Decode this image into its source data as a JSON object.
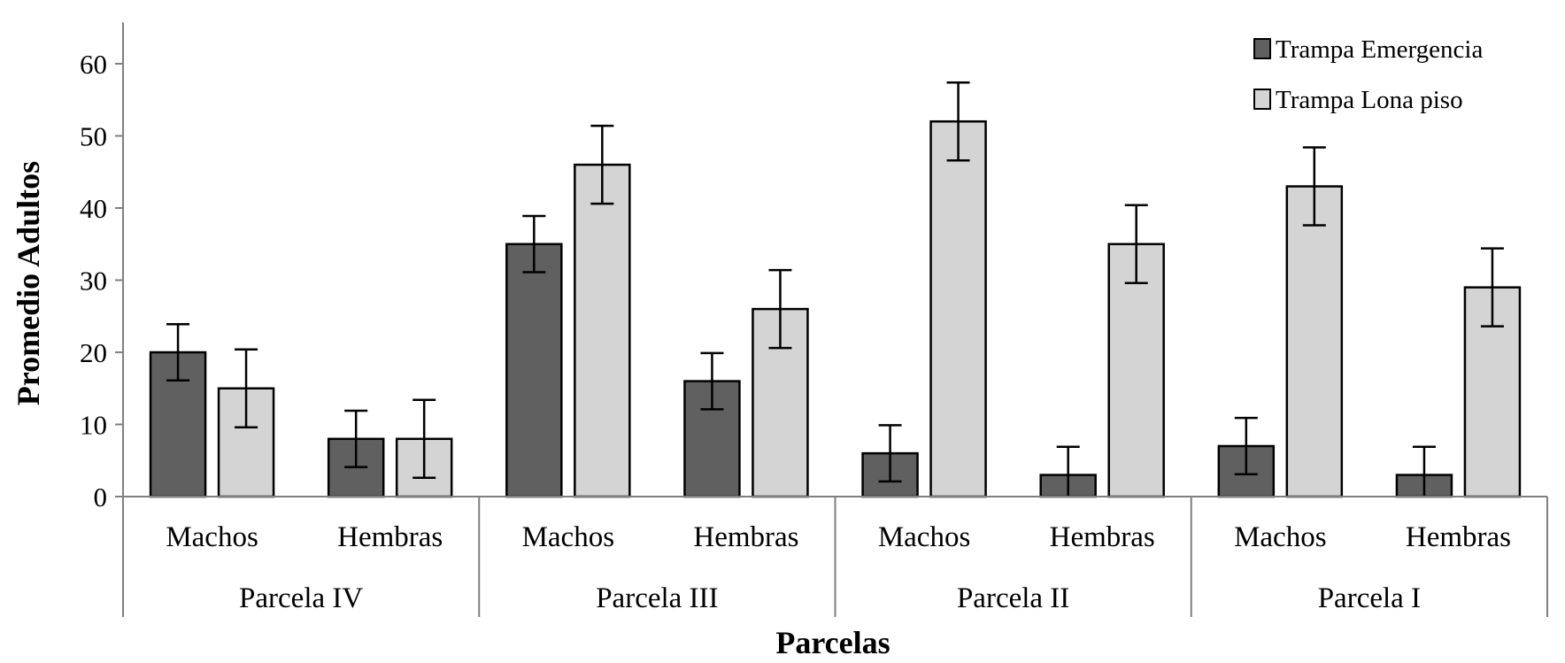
{
  "chart_data": {
    "type": "bar",
    "title": "",
    "xlabel": "Parcelas",
    "ylabel": "Promedio Adultos",
    "ylim": [
      0,
      65
    ],
    "yticks": [
      0,
      10,
      20,
      30,
      40,
      50,
      60
    ],
    "grid": false,
    "legend_position": "top-right",
    "categories": [
      "Machos",
      "Hembras",
      "Machos",
      "Hembras",
      "Machos",
      "Hembras",
      "Machos",
      "Hembras"
    ],
    "groups": [
      {
        "label": "Parcela IV",
        "span": [
          0,
          1
        ]
      },
      {
        "label": "Parcela III",
        "span": [
          2,
          3
        ]
      },
      {
        "label": "Parcela II",
        "span": [
          4,
          5
        ]
      },
      {
        "label": "Parcela I",
        "span": [
          6,
          7
        ]
      }
    ],
    "series": [
      {
        "name": "Trampa Emergencia",
        "color": "#606060",
        "values": [
          20,
          8,
          35,
          16,
          6,
          3,
          7,
          3
        ],
        "error": [
          3.9,
          3.9,
          3.9,
          3.9,
          3.9,
          3.9,
          3.9,
          3.9
        ]
      },
      {
        "name": "Trampa Lona piso",
        "color": "#d4d4d4",
        "values": [
          15,
          8,
          46,
          26,
          52,
          35,
          43,
          29
        ],
        "error": [
          5.4,
          5.4,
          5.4,
          5.4,
          5.4,
          5.4,
          5.4,
          5.4
        ]
      }
    ]
  }
}
